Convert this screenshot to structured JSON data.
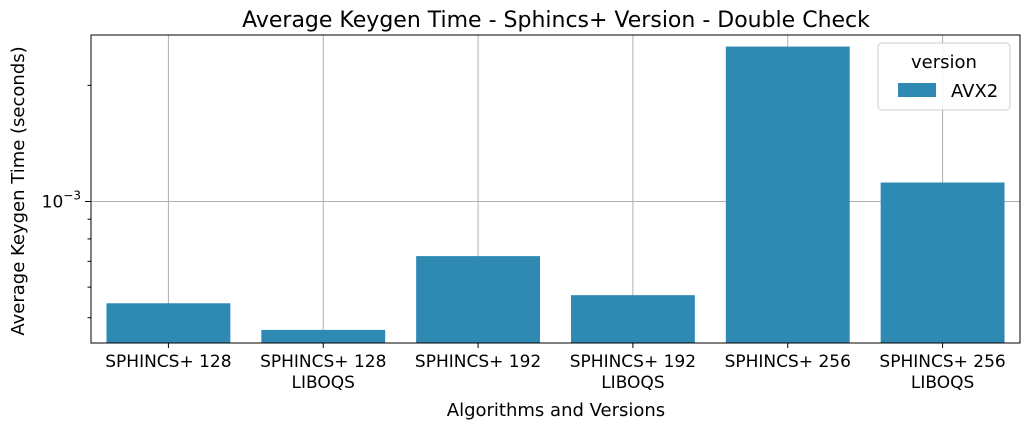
{
  "chart_data": {
    "type": "bar",
    "title": "Average Keygen Time - Sphincs+ Version - Double Check",
    "xlabel": "Algorithms and Versions",
    "ylabel": "Average Keygen Time (seconds)",
    "yscale": "log",
    "ylim": [
      0.00043,
      0.0027
    ],
    "ytick_label": {
      "base": "10",
      "exp": "−3",
      "value": 0.001
    },
    "grid": true,
    "categories": [
      [
        "SPHINCS+ 128"
      ],
      [
        "SPHINCS+ 128",
        "LIBOQS"
      ],
      [
        "SPHINCS+ 192"
      ],
      [
        "SPHINCS+ 192",
        "LIBOQS"
      ],
      [
        "SPHINCS+ 256"
      ],
      [
        "SPHINCS+ 256",
        "LIBOQS"
      ]
    ],
    "series": [
      {
        "name": "AVX2",
        "color": "#2e89b3",
        "values": [
          0.000545,
          0.000465,
          0.000722,
          0.000572,
          0.00252,
          0.00112
        ]
      }
    ],
    "legend": {
      "title": "version",
      "placement": "top-right"
    }
  }
}
